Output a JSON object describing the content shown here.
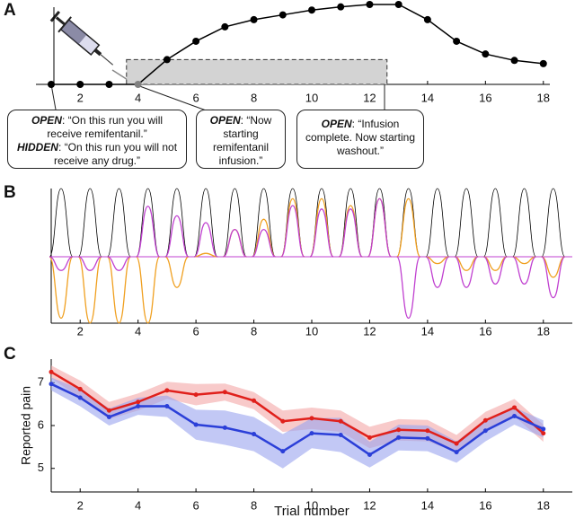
{
  "chart_data": [
    {
      "type": "line",
      "panel_label": "A",
      "x": [
        1,
        2,
        3,
        4,
        5,
        6,
        7,
        8,
        9,
        10,
        11,
        12,
        13,
        14,
        15,
        16,
        17,
        18
      ],
      "values": [
        0,
        0,
        0,
        0,
        0.31,
        0.54,
        0.72,
        0.81,
        0.87,
        0.93,
        0.97,
        1,
        1,
        0.81,
        0.54,
        0.38,
        0.3,
        0.26
      ],
      "color": "#000000",
      "point_colors": [
        "#000000",
        "#000000",
        "#000000",
        "#808080",
        "#000000",
        "#000000",
        "#000000",
        "#000000",
        "#000000",
        "#000000",
        "#000000",
        "#000000",
        "#000000",
        "#000000",
        "#000000",
        "#000000",
        "#000000",
        "#000000"
      ],
      "xlim": [
        1,
        19
      ],
      "ylim": [
        0,
        1
      ],
      "xticks": [
        2,
        4,
        6,
        8,
        10,
        12,
        14,
        16,
        18
      ],
      "shaded_region": {
        "x": [
          3.6,
          12.6
        ],
        "y": [
          0,
          0.31
        ],
        "color": "#d3d3d3"
      },
      "annotations": [
        {
          "label": "OPEN",
          "text": ": “On this run you will receive remifentanil.”"
        },
        {
          "label": "HIDDEN",
          "text": ": “On this run you will not receive any drug.”"
        },
        {
          "label": "OPEN",
          "text": ":  “Now starting remifentanil infusion.”"
        },
        {
          "label": "OPEN",
          "text": ": “Infusion complete.  Now starting washout.”"
        }
      ]
    },
    {
      "type": "pulses",
      "panel_label": "B",
      "x": [
        1,
        2,
        3,
        4,
        5,
        6,
        7,
        8,
        9,
        10,
        11,
        12,
        13,
        14,
        15,
        16,
        17,
        18
      ],
      "series": [
        {
          "color": "#000000",
          "values": [
            1,
            1,
            1,
            1,
            1,
            1,
            1,
            1,
            1,
            1,
            1,
            1,
            1,
            1,
            1,
            1,
            1,
            1
          ]
        },
        {
          "color": "#f0a020",
          "values": [
            -0.9,
            -0.97,
            -0.97,
            -0.97,
            -0.45,
            0.05,
            0.4,
            0.55,
            0.85,
            0.85,
            0.75,
            0.85,
            0.85,
            -0.1,
            -0.2,
            -0.2,
            -0.1,
            -0.3
          ]
        },
        {
          "color": "#c040d0",
          "values": [
            -0.2,
            -0.2,
            -0.2,
            0.74,
            0.6,
            0.5,
            0.4,
            0.4,
            0.75,
            0.7,
            0.7,
            0.85,
            -0.9,
            -0.45,
            -0.45,
            -0.4,
            -0.4,
            -0.6
          ]
        }
      ],
      "xlim": [
        1,
        19
      ],
      "ylim": [
        -1,
        1
      ],
      "xticks": [
        2,
        4,
        6,
        8,
        10,
        12,
        14,
        16,
        18
      ]
    },
    {
      "type": "band-line",
      "panel_label": "C",
      "x": [
        1,
        2,
        3,
        4,
        5,
        6,
        7,
        8,
        9,
        10,
        11,
        12,
        13,
        14,
        15,
        16,
        17,
        18
      ],
      "series": [
        {
          "color": "#e0201b",
          "band_color": "#f4a6a6",
          "values": [
            7.25,
            6.85,
            6.35,
            6.55,
            6.82,
            6.72,
            6.78,
            6.58,
            6.1,
            6.17,
            6.1,
            5.72,
            5.9,
            5.88,
            5.58,
            6.12,
            6.42,
            5.82
          ],
          "errors": [
            0.15,
            0.2,
            0.2,
            0.2,
            0.2,
            0.25,
            0.2,
            0.2,
            0.25,
            0.25,
            0.25,
            0.25,
            0.25,
            0.25,
            0.2,
            0.2,
            0.2,
            0.2
          ]
        },
        {
          "color": "#2b3fd8",
          "band_color": "#9aa4ee",
          "values": [
            6.97,
            6.65,
            6.2,
            6.45,
            6.45,
            6.02,
            5.95,
            5.8,
            5.4,
            5.82,
            5.78,
            5.32,
            5.72,
            5.7,
            5.38,
            5.88,
            6.22,
            5.92
          ],
          "errors": [
            0.15,
            0.2,
            0.2,
            0.2,
            0.25,
            0.35,
            0.4,
            0.4,
            0.4,
            0.35,
            0.4,
            0.3,
            0.3,
            0.3,
            0.25,
            0.25,
            0.2,
            0.2
          ]
        }
      ],
      "xlim": [
        1,
        19
      ],
      "ylim": [
        4.45,
        7.55
      ],
      "xticks": [
        2,
        4,
        6,
        8,
        10,
        12,
        14,
        16,
        18
      ],
      "yticks": [
        5,
        6,
        7
      ],
      "ylabel": "Reported pain",
      "xlabel": "Trial number"
    }
  ]
}
